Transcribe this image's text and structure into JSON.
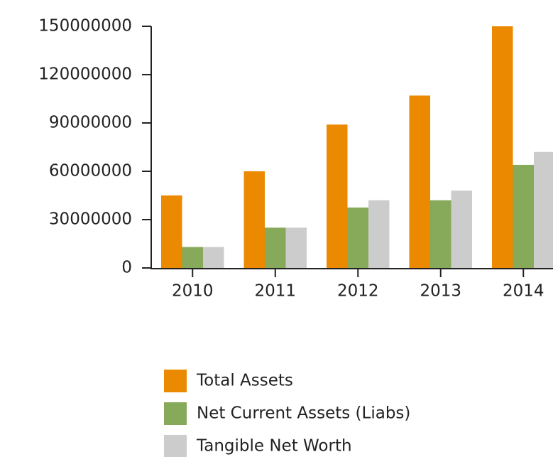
{
  "chart_data": {
    "type": "bar",
    "categories": [
      "2010",
      "2011",
      "2012",
      "2013",
      "2014"
    ],
    "series": [
      {
        "name": "Total Assets",
        "color": "#eb8a00",
        "values": [
          45000000,
          60000000,
          89000000,
          107000000,
          150000000
        ]
      },
      {
        "name": "Net Current Assets (Liabs)",
        "color": "#86a95a",
        "values": [
          13000000,
          25000000,
          37500000,
          42000000,
          64000000
        ]
      },
      {
        "name": "Tangible Net Worth",
        "color": "#cccccc",
        "values": [
          13000000,
          25000000,
          42000000,
          48000000,
          72000000
        ]
      }
    ],
    "ylim": [
      0,
      150000000
    ],
    "yticks": [
      0,
      30000000,
      60000000,
      90000000,
      120000000,
      150000000
    ],
    "grid": false,
    "legend": "bottom"
  }
}
